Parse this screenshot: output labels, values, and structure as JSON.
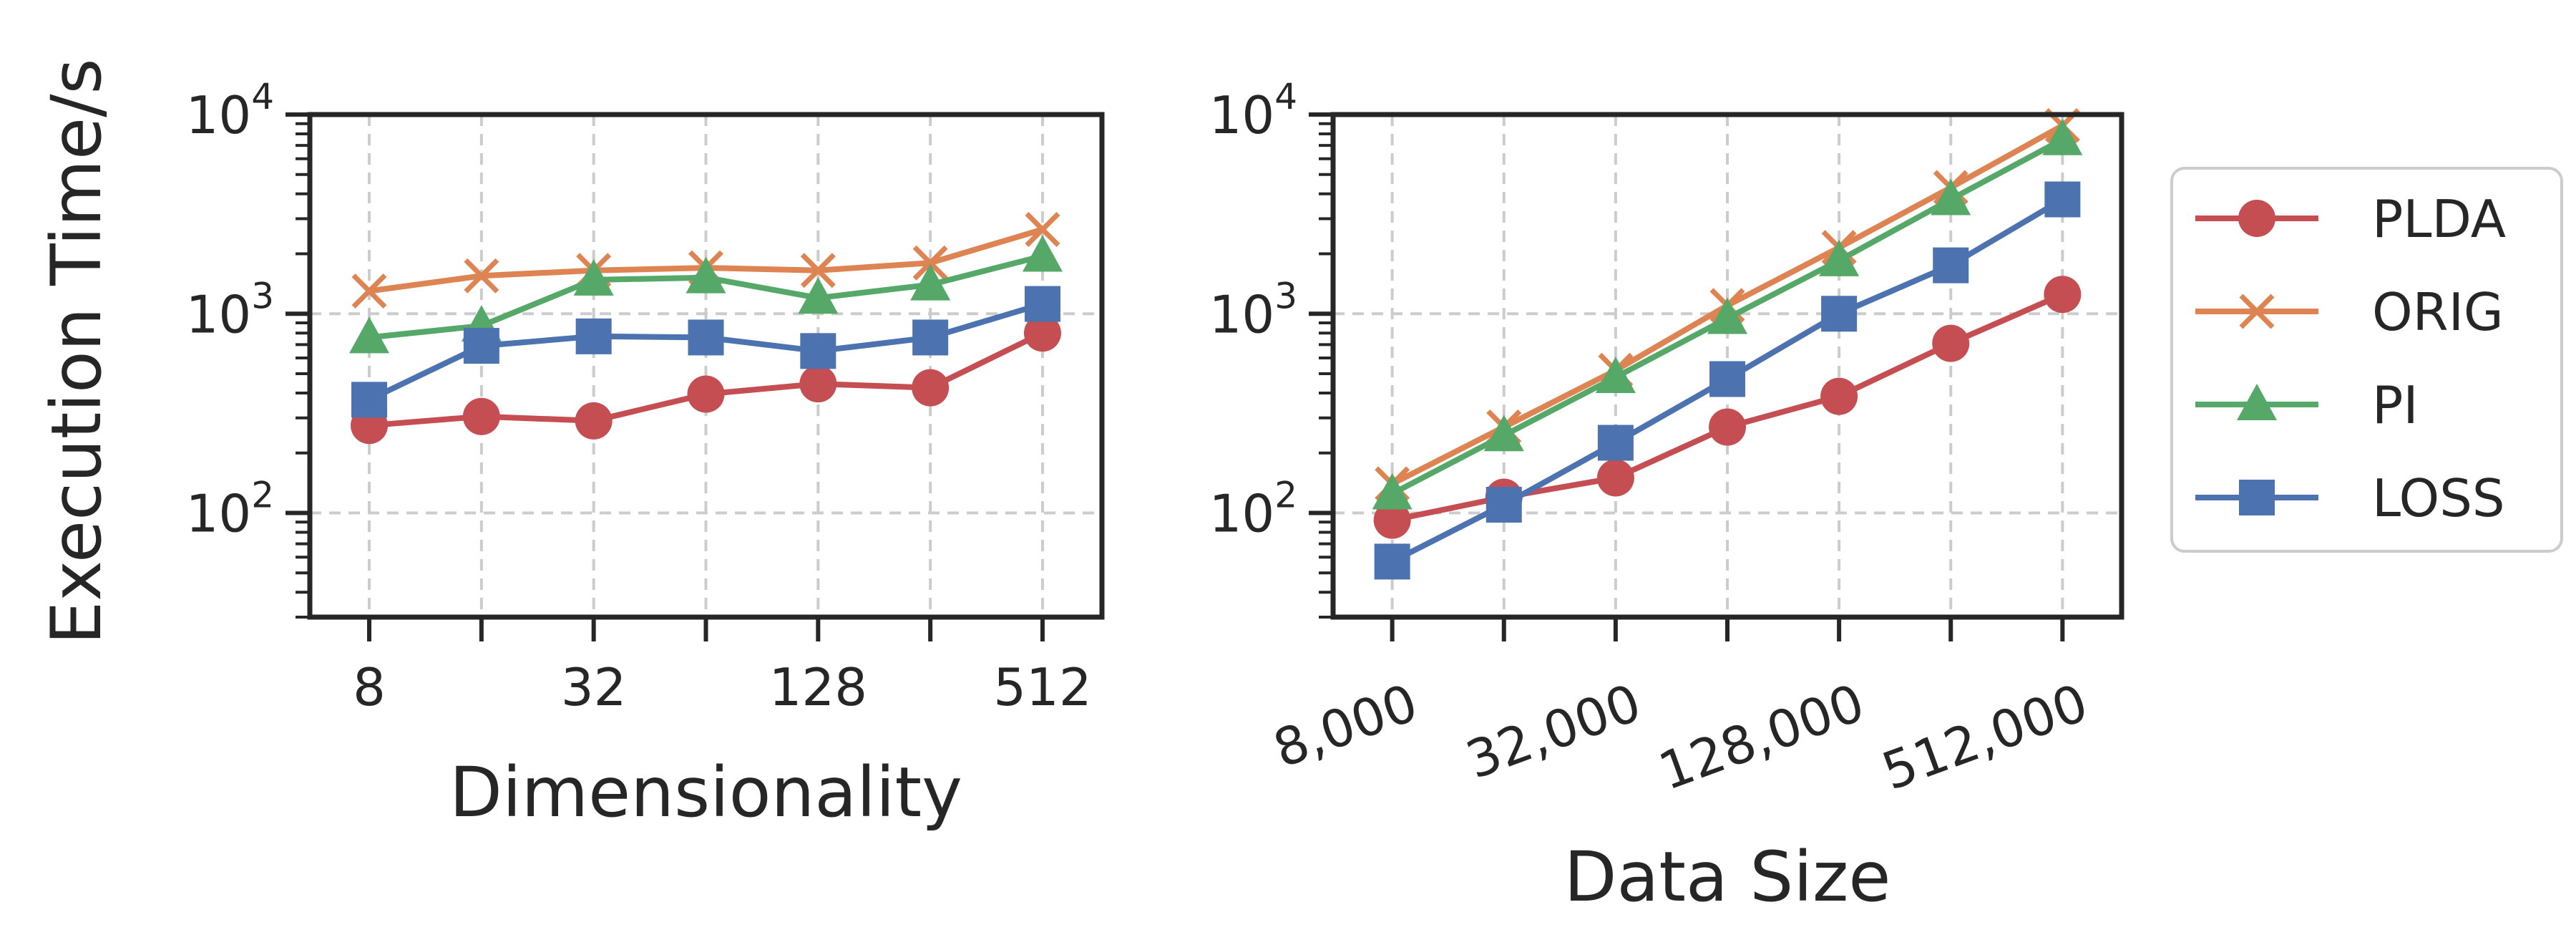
{
  "chart_data": [
    {
      "type": "line",
      "xlabel": "Dimensionality",
      "ylabel": "Execution Time/s",
      "x": [
        8,
        16,
        32,
        64,
        128,
        256,
        512
      ],
      "x_tick_values": [
        8,
        32,
        128,
        512
      ],
      "x_tick_labels": [
        "8",
        "32",
        "128",
        "512"
      ],
      "xscale": "log2",
      "yscale": "log",
      "ylim": [
        30,
        10000
      ],
      "y_tick_labels": [
        {
          "base": "10",
          "exp": "2"
        },
        {
          "base": "10",
          "exp": "3"
        },
        {
          "base": "10",
          "exp": "4"
        }
      ],
      "grid": true,
      "series": [
        {
          "name": "PLDA",
          "values": [
            275,
            305,
            290,
            395,
            445,
            425,
            800
          ]
        },
        {
          "name": "ORIG",
          "values": [
            1300,
            1550,
            1650,
            1700,
            1650,
            1800,
            2650
          ]
        },
        {
          "name": "PI",
          "values": [
            760,
            870,
            1480,
            1520,
            1200,
            1400,
            1950
          ]
        },
        {
          "name": "LOSS",
          "values": [
            370,
            690,
            770,
            760,
            650,
            760,
            1120
          ]
        }
      ]
    },
    {
      "type": "line",
      "xlabel": "Data Size",
      "ylabel": "",
      "x": [
        8000,
        16000,
        32000,
        64000,
        128000,
        256000,
        512000
      ],
      "x_tick_values": [
        8000,
        32000,
        128000,
        512000
      ],
      "x_tick_labels": [
        "8,000",
        "32,000",
        "128,000",
        "512,000"
      ],
      "xscale": "log2",
      "yscale": "log",
      "ylim": [
        30,
        10000
      ],
      "y_tick_labels": [
        {
          "base": "10",
          "exp": "2"
        },
        {
          "base": "10",
          "exp": "3"
        },
        {
          "base": "10",
          "exp": "4"
        }
      ],
      "grid": true,
      "series": [
        {
          "name": "PLDA",
          "values": [
            92,
            120,
            150,
            270,
            385,
            710,
            1250
          ]
        },
        {
          "name": "ORIG",
          "values": [
            140,
            270,
            520,
            1100,
            2150,
            4300,
            8800
          ]
        },
        {
          "name": "PI",
          "values": [
            125,
            245,
            480,
            950,
            1850,
            3750,
            7500
          ]
        },
        {
          "name": "LOSS",
          "values": [
            57,
            110,
            225,
            470,
            1000,
            1750,
            3750
          ]
        }
      ]
    }
  ],
  "legend": {
    "placement": "right",
    "entries": [
      {
        "label": "PLDA",
        "color": "#c44e52",
        "marker": "circle"
      },
      {
        "label": "ORIG",
        "color": "#dd8452",
        "marker": "x"
      },
      {
        "label": "PI",
        "color": "#55a868",
        "marker": "triangle"
      },
      {
        "label": "LOSS",
        "color": "#4c72b0",
        "marker": "square"
      }
    ]
  }
}
